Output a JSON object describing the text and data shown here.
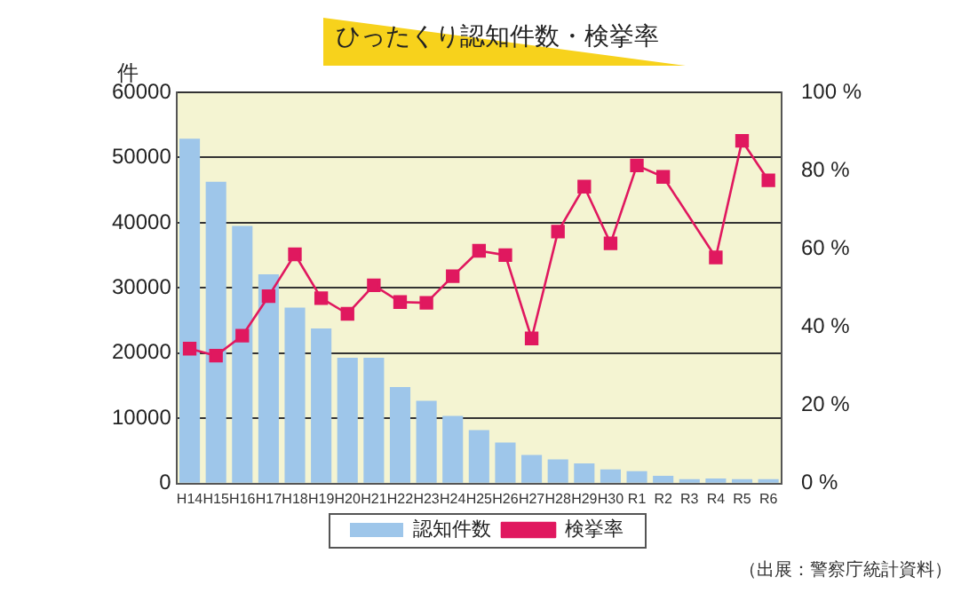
{
  "chart_data": {
    "type": "bar",
    "title": "ひったくり認知件数・検挙率",
    "ylabel": "件",
    "categories": [
      "H14",
      "H15",
      "H16",
      "H17",
      "H18",
      "H19",
      "H20",
      "H21",
      "H22",
      "H23",
      "H24",
      "H25",
      "H26",
      "H27",
      "H28",
      "H29",
      "H30",
      "R1",
      "R2",
      "R3",
      "R4",
      "R5",
      "R6"
    ],
    "series": [
      {
        "name": "認知件数",
        "color": "#9ec6ea",
        "values": [
          52900,
          46300,
          39500,
          32100,
          27000,
          23800,
          19300,
          19300,
          14800,
          12700,
          10400,
          8200,
          6300,
          4400,
          3700,
          3100,
          2200,
          1900,
          1200,
          700,
          800,
          700,
          700
        ]
      },
      {
        "name": "検挙率",
        "type": "line",
        "axis": "y2",
        "color": "#e0185f",
        "values": [
          34.5,
          32.7,
          37.8,
          47.9,
          58.6,
          47.4,
          43.4,
          50.7,
          46.4,
          46.2,
          53.0,
          59.5,
          58.4,
          37.1,
          64.4,
          75.9,
          61.4,
          81.3,
          78.4,
          null,
          57.8,
          87.6,
          77.5
        ]
      }
    ],
    "ylim": [
      0,
      60000
    ],
    "yticks": [
      0,
      10000,
      20000,
      30000,
      40000,
      50000,
      60000
    ],
    "y2lim": [
      0,
      100
    ],
    "y2ticks": [
      {
        "value": 0,
        "label": "0 %"
      },
      {
        "value": 20,
        "label": "20 %"
      },
      {
        "value": 40,
        "label": "40 %"
      },
      {
        "value": 60,
        "label": "60 %"
      },
      {
        "value": 80,
        "label": "80 %"
      },
      {
        "value": 100,
        "label": "100 %"
      }
    ],
    "grid": "y",
    "legend": "bottom",
    "marker": "square",
    "line_style": "solid",
    "annotations": [
      "（出展：警察庁統計資料）"
    ]
  }
}
